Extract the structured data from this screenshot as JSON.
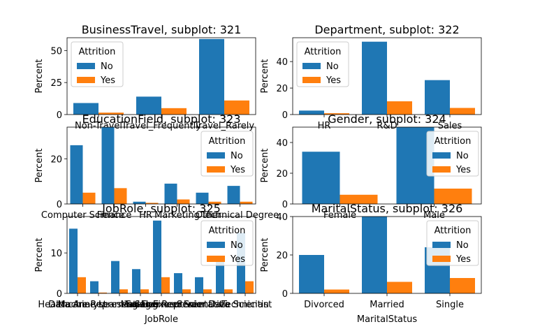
{
  "chart_data": [
    {
      "type": "bar",
      "title": "BusinessTravel, subplot: 321",
      "xlabel": "",
      "ylabel": "Percent",
      "categories": [
        "Non-Travel",
        "Travel_Frequently",
        "Travel_Rarely"
      ],
      "ylim": [
        0,
        60
      ],
      "yticks": [
        0,
        25,
        50
      ],
      "legend_title": "Attrition",
      "legend_position": "top-left",
      "series": [
        {
          "name": "No",
          "color": "#1f77b4",
          "values": [
            9,
            14,
            59
          ]
        },
        {
          "name": "Yes",
          "color": "#ff7f0e",
          "values": [
            1.5,
            5,
            11
          ]
        }
      ]
    },
    {
      "type": "bar",
      "title": "Department, subplot: 322",
      "xlabel": "",
      "ylabel": "Percent",
      "categories": [
        "HR",
        "R&D",
        "Sales"
      ],
      "ylim": [
        0,
        58
      ],
      "yticks": [
        0,
        20,
        40
      ],
      "legend_title": "Attrition",
      "legend_position": "top-left",
      "series": [
        {
          "name": "No",
          "color": "#1f77b4",
          "values": [
            3,
            55,
            26
          ]
        },
        {
          "name": "Yes",
          "color": "#ff7f0e",
          "values": [
            1,
            10,
            5
          ]
        }
      ]
    },
    {
      "type": "bar",
      "title": "EducationField, subplot: 323",
      "xlabel": "",
      "ylabel": "Percent",
      "categories": [
        "Computer Science",
        "Finance",
        "HR",
        "Marketing",
        "Other",
        "Technical Degree"
      ],
      "ylim": [
        0,
        34
      ],
      "yticks": [
        0,
        20
      ],
      "legend_title": "Attrition",
      "legend_position": "top-right",
      "series": [
        {
          "name": "No",
          "color": "#1f77b4",
          "values": [
            26,
            34,
            1,
            9,
            5,
            8
          ]
        },
        {
          "name": "Yes",
          "color": "#ff7f0e",
          "values": [
            5,
            7,
            0.5,
            2,
            1,
            1
          ]
        }
      ]
    },
    {
      "type": "bar",
      "title": "Gender, subplot: 324",
      "xlabel": "",
      "ylabel": "Percent",
      "categories": [
        "Female",
        "Male"
      ],
      "ylim": [
        0,
        50
      ],
      "yticks": [
        0,
        20,
        40
      ],
      "legend_title": "Attrition",
      "legend_position": "top-right",
      "series": [
        {
          "name": "No",
          "color": "#1f77b4",
          "values": [
            34,
            50
          ]
        },
        {
          "name": "Yes",
          "color": "#ff7f0e",
          "values": [
            6,
            10
          ]
        }
      ]
    },
    {
      "type": "bar",
      "title": "JobRole, subplot: 325",
      "xlabel": "JobRole",
      "ylabel": "Percent",
      "categories": [
        "Data Analyst",
        "Healthcare Representative",
        "Machine Learning Engineer",
        "Manager",
        "Sales Executive",
        "Sales Representative",
        "Scientist",
        "Senior Data Scientist",
        "Technician"
      ],
      "ylim": [
        0,
        19
      ],
      "yticks": [
        0,
        10
      ],
      "legend_title": "Attrition",
      "legend_position": "top-right",
      "series": [
        {
          "name": "No",
          "color": "#1f77b4",
          "values": [
            16,
            3,
            8,
            6,
            18,
            5,
            4,
            9,
            15
          ]
        },
        {
          "name": "Yes",
          "color": "#ff7f0e",
          "values": [
            4,
            0.2,
            1,
            1,
            4,
            1,
            1,
            1,
            3
          ]
        }
      ]
    },
    {
      "type": "bar",
      "title": "MaritalStatus, subplot: 326",
      "xlabel": "MaritalStatus",
      "ylabel": "Percent",
      "categories": [
        "Divorced",
        "Married",
        "Single"
      ],
      "ylim": [
        0,
        40
      ],
      "yticks": [
        0,
        20,
        40
      ],
      "legend_title": "Attrition",
      "legend_position": "top-right",
      "series": [
        {
          "name": "No",
          "color": "#1f77b4",
          "values": [
            20,
            40,
            24
          ]
        },
        {
          "name": "Yes",
          "color": "#ff7f0e",
          "values": [
            2,
            6,
            8
          ]
        }
      ]
    }
  ]
}
